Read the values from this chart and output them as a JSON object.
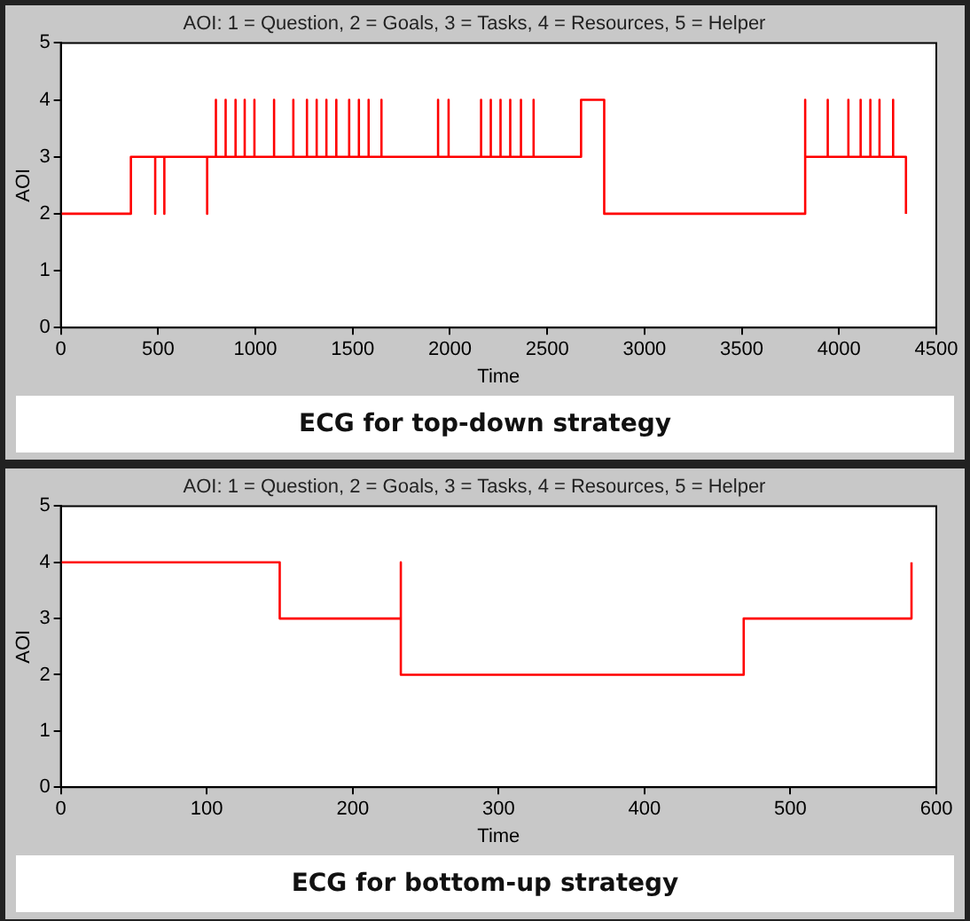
{
  "chart_data": [
    {
      "type": "step",
      "title": "AOI: 1 = Question, 2 = Goals, 3 = Tasks, 4 = Resources, 5 = Helper",
      "xlabel": "Time",
      "ylabel": "AOI",
      "annotations": [
        "ECG for top-down strategy"
      ],
      "xlim": [
        0,
        4500
      ],
      "xticks": [
        0,
        500,
        1000,
        1500,
        2000,
        2500,
        3000,
        3500,
        4000,
        4500
      ],
      "ylim": [
        0,
        5
      ],
      "yticks": [
        0,
        1,
        2,
        3,
        4,
        5
      ],
      "grid": false,
      "legend": false,
      "marker": "none",
      "line_style": "solid",
      "series": [
        {
          "color": "#ff0000",
          "x": [
            0,
            360,
            485,
            485,
            532,
            532,
            752,
            752,
            797,
            797,
            847,
            847,
            898,
            898,
            945,
            945,
            995,
            995,
            1096,
            1096,
            1195,
            1195,
            1265,
            1265,
            1315,
            1315,
            1365,
            1365,
            1416,
            1416,
            1482,
            1482,
            1532,
            1532,
            1582,
            1582,
            1648,
            1648,
            1939,
            1939,
            1993,
            1993,
            2160,
            2160,
            2210,
            2210,
            2260,
            2260,
            2310,
            2310,
            2365,
            2365,
            2430,
            2430,
            2674,
            2793,
            3826,
            3826,
            3942,
            3942,
            4048,
            4048,
            4111,
            4111,
            4161,
            4161,
            4208,
            4208,
            4278,
            4278,
            4344,
            4344
          ],
          "values": [
            2,
            3,
            2,
            3,
            2,
            3,
            2,
            3,
            4,
            3,
            4,
            3,
            4,
            3,
            4,
            3,
            4,
            3,
            4,
            3,
            4,
            3,
            4,
            3,
            4,
            3,
            4,
            3,
            4,
            3,
            4,
            3,
            4,
            3,
            4,
            3,
            4,
            3,
            4,
            3,
            4,
            3,
            4,
            3,
            4,
            3,
            4,
            3,
            4,
            3,
            4,
            3,
            4,
            3,
            4,
            2,
            4,
            3,
            4,
            3,
            4,
            3,
            4,
            3,
            4,
            3,
            4,
            3,
            4,
            3,
            3,
            2
          ]
        }
      ]
    },
    {
      "type": "step",
      "title": "AOI: 1 = Question, 2 = Goals, 3 = Tasks, 4 = Resources, 5 = Helper",
      "xlabel": "Time",
      "ylabel": "AOI",
      "annotations": [
        "ECG for bottom-up strategy"
      ],
      "xlim": [
        0,
        600
      ],
      "xticks": [
        0,
        100,
        200,
        300,
        400,
        500,
        600
      ],
      "ylim": [
        0,
        5
      ],
      "yticks": [
        0,
        1,
        2,
        3,
        4,
        5
      ],
      "grid": false,
      "legend": false,
      "marker": "none",
      "line_style": "solid",
      "series": [
        {
          "color": "#ff0000",
          "x": [
            0,
            150,
            233,
            233,
            468,
            583,
            583
          ],
          "values": [
            4,
            3,
            4,
            2,
            3,
            3,
            4
          ]
        }
      ]
    }
  ]
}
